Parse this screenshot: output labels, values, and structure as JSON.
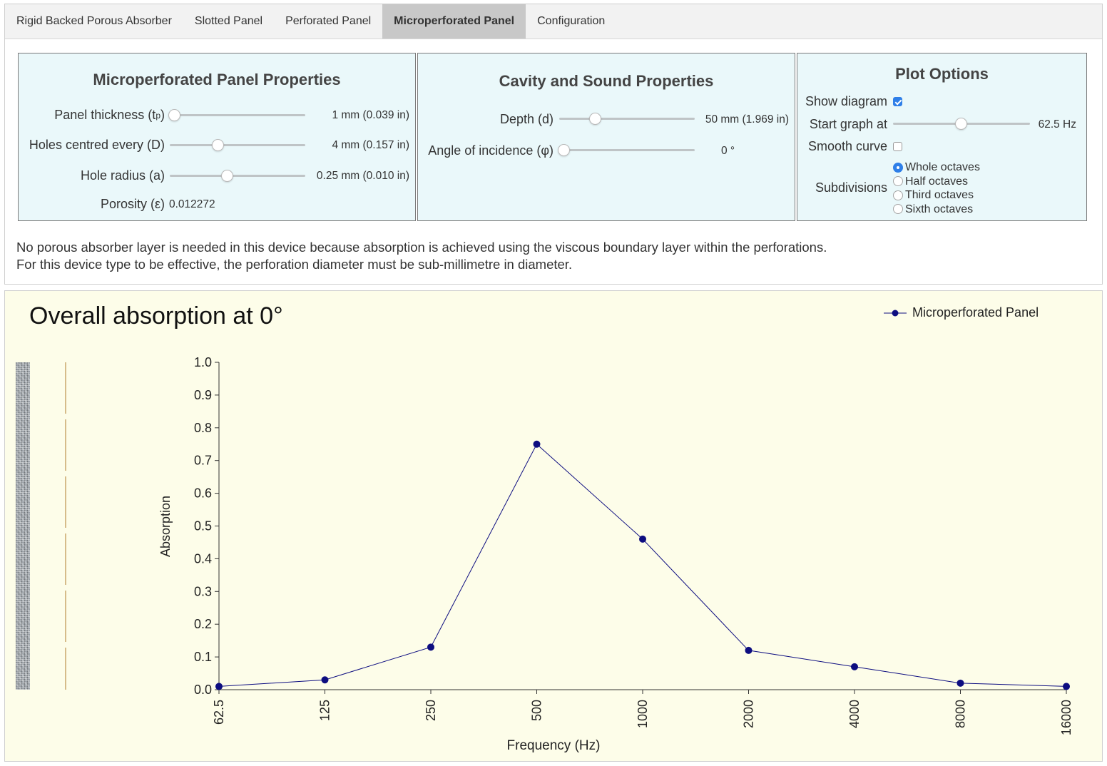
{
  "tabs": [
    {
      "label": "Rigid Backed Porous Absorber"
    },
    {
      "label": "Slotted Panel"
    },
    {
      "label": "Perforated Panel"
    },
    {
      "label": "Microperforated Panel",
      "active": true
    },
    {
      "label": "Configuration"
    }
  ],
  "panel_props": {
    "title": "Microperforated Panel Properties",
    "thickness": {
      "label_pre": "Panel thickness (t",
      "label_sub": "p",
      "label_post": ")",
      "value": "1 mm  (0.039 in)",
      "slider_fraction": 0.0
    },
    "holes": {
      "label": "Holes centred every (D)",
      "value": "4 mm  (0.157 in)",
      "slider_fraction": 0.35
    },
    "radius": {
      "label": "Hole radius (a)",
      "value": "0.25 mm  (0.010 in)",
      "slider_fraction": 0.42
    },
    "porosity": {
      "label": "Porosity (ε)",
      "value": "0.012272"
    }
  },
  "cavity_props": {
    "title": "Cavity and Sound Properties",
    "depth": {
      "label": "Depth (d)",
      "value": "50 mm  (1.969 in)",
      "slider_fraction": 0.25
    },
    "angle": {
      "label": "Angle of incidence (φ)",
      "value": "0 °",
      "slider_fraction": 0.0
    }
  },
  "plot_options": {
    "title": "Plot Options",
    "show_diagram": {
      "label": "Show diagram",
      "checked": true
    },
    "start_graph": {
      "label": "Start graph at",
      "value": "62.5 Hz",
      "slider_fraction": 0.5
    },
    "smooth_curve": {
      "label": "Smooth curve",
      "checked": false
    },
    "subdivisions": {
      "label": "Subdivisions",
      "options": [
        "Whole octaves",
        "Half octaves",
        "Third octaves",
        "Sixth octaves"
      ],
      "selected": "Whole octaves"
    }
  },
  "notes": {
    "line1": "No porous absorber layer is needed in this device because absorption is achieved using the viscous boundary layer within the perforations.",
    "line2": "For this device type to be effective, the perforation diameter must be sub-millimetre in diameter."
  },
  "colors": {
    "series": "#0d0d80",
    "chart_bg": "#fdfde9",
    "box_bg": "#eaf8fa",
    "checkbox_accent": "#2f7fe8",
    "panel_line": "#b07a2c"
  },
  "chart_data": {
    "type": "line",
    "title": "Overall absorption at 0°",
    "xlabel": "Frequency (Hz)",
    "ylabel": "Absorption",
    "categories": [
      "62.5",
      "125",
      "250",
      "500",
      "1000",
      "2000",
      "4000",
      "8000",
      "16000"
    ],
    "series": [
      {
        "name": "Microperforated Panel",
        "values": [
          0.01,
          0.03,
          0.13,
          0.75,
          0.46,
          0.12,
          0.07,
          0.02,
          0.01
        ]
      }
    ],
    "ylim": [
      0,
      1.0
    ],
    "yticks": [
      "0.0",
      "0.1",
      "0.2",
      "0.3",
      "0.4",
      "0.5",
      "0.6",
      "0.7",
      "0.8",
      "0.9",
      "1.0"
    ],
    "grid": false,
    "legend_position": "top-right"
  }
}
